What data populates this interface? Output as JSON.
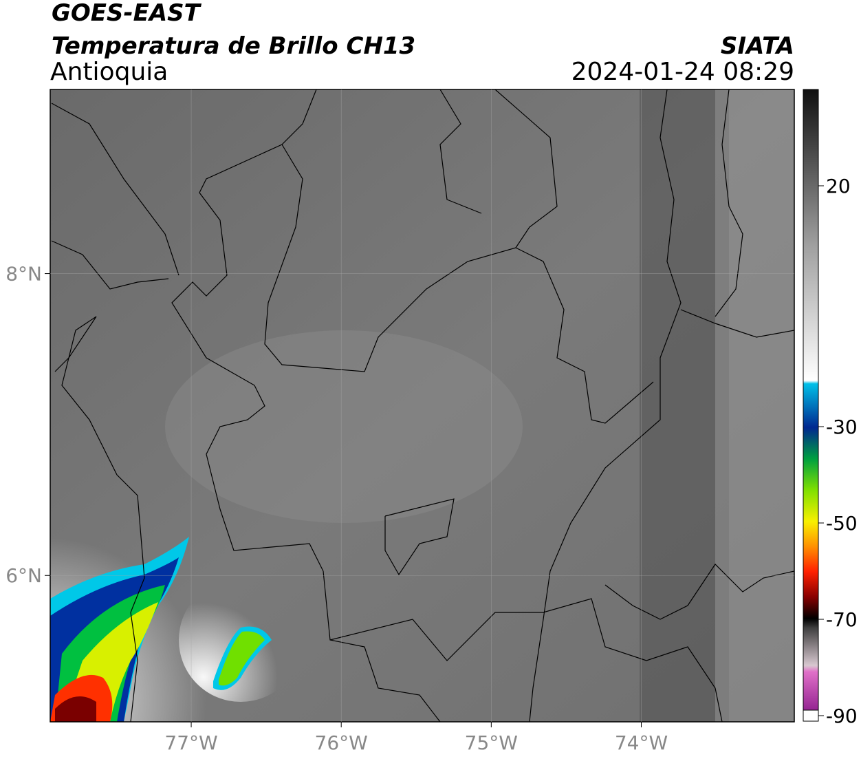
{
  "header": {
    "title": "GOES-EAST",
    "subtitle": "Temperatura de Brillo CH13",
    "region": "Antioquia",
    "org": "SIATA",
    "datetime": "2024-01-24 08:29"
  },
  "map": {
    "xlim": [
      -77.94,
      -72.98
    ],
    "ylim": [
      5.03,
      9.22
    ],
    "xticks": [
      {
        "value": -77,
        "label": "77°W"
      },
      {
        "value": -76,
        "label": "76°W"
      },
      {
        "value": -75,
        "label": "75°W"
      },
      {
        "value": -74,
        "label": "74°W"
      }
    ],
    "yticks": [
      {
        "value": 8,
        "label": "8°N"
      },
      {
        "value": 6,
        "label": "6°N"
      }
    ],
    "grid": true
  },
  "colorbar": {
    "lim": [
      -90,
      40
    ],
    "ticks": [
      20,
      -30,
      -50,
      -70,
      -90
    ]
  }
}
